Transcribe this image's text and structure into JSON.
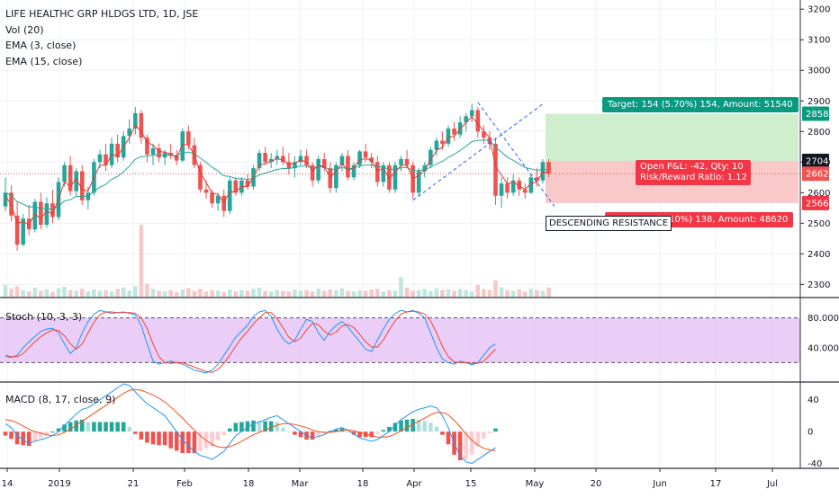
{
  "colors": {
    "up": "#26a69a",
    "down": "#ef5350",
    "ema_fast": "#e53935",
    "ema_slow": "#26a69a",
    "stoch_k": "#2196f3",
    "stoch_d": "#f44336",
    "stoch_bg": "#e6c5f7",
    "macd_line": "#2196f3",
    "signal_line": "#f4511e",
    "target_fill": "#cfeecd",
    "stop_fill": "#f9c9c9",
    "target_label": "#089981",
    "stop_label": "#f23645",
    "pattern_line": "#2962ff"
  },
  "header": {
    "title": "LIFE HEALTHC GRP HLDGS LTD, 1D, JSE",
    "indicators": [
      "Vol (20)",
      "EMA (3, close)",
      "EMA (15, close)"
    ]
  },
  "position": {
    "target_label": "Target: 154 (5.70%) 154, Amount: 51540",
    "stop_label": "Stop: 138 (5.10%) 138, Amount: 48620",
    "pl_label": "Open P&L: -42, Qty: 10",
    "rr_label": "Risk/Reward Ratio: 1.12",
    "target_price": 2858,
    "entry_price": 2704,
    "stop_price": 2566,
    "current_price": 2662
  },
  "pattern": {
    "label": "DESCENDING RESISTANCE"
  },
  "price_axis": {
    "ticks": [
      "3200",
      "3100",
      "3000",
      "2900",
      "2800",
      "2700",
      "2600",
      "2500",
      "2400",
      "2300"
    ],
    "badges": [
      "2858",
      "2704",
      "2662",
      "2566"
    ]
  },
  "stoch": {
    "label": "Stoch (10, 3, 3)",
    "ticks": [
      "80.0000",
      "40.0000"
    ],
    "upper_band": 80,
    "lower_band": 20
  },
  "macd": {
    "label": "MACD (8, 17, close, 9)",
    "ticks": [
      "40",
      "0",
      "-40"
    ]
  },
  "time_axis": {
    "labels": [
      "14",
      "2019",
      "21",
      "Feb",
      "18",
      "Mar",
      "18",
      "Apr",
      "15",
      "May",
      "20",
      "Jun",
      "17",
      "Jul"
    ]
  },
  "chart_data": {
    "type": "candlestick",
    "price_range": [
      2260,
      3230
    ],
    "stoch_range": [
      0,
      100
    ],
    "macd_range": [
      -45,
      60
    ],
    "candles": [
      {
        "o": 2555,
        "h": 2650,
        "l": 2540,
        "c": 2600
      },
      {
        "o": 2600,
        "h": 2625,
        "l": 2505,
        "c": 2525
      },
      {
        "o": 2525,
        "h": 2570,
        "l": 2410,
        "c": 2430
      },
      {
        "o": 2430,
        "h": 2530,
        "l": 2425,
        "c": 2515
      },
      {
        "o": 2515,
        "h": 2560,
        "l": 2460,
        "c": 2480
      },
      {
        "o": 2480,
        "h": 2580,
        "l": 2470,
        "c": 2570
      },
      {
        "o": 2570,
        "h": 2600,
        "l": 2480,
        "c": 2495
      },
      {
        "o": 2495,
        "h": 2585,
        "l": 2485,
        "c": 2565
      },
      {
        "o": 2565,
        "h": 2610,
        "l": 2500,
        "c": 2520
      },
      {
        "o": 2520,
        "h": 2650,
        "l": 2510,
        "c": 2635
      },
      {
        "o": 2635,
        "h": 2700,
        "l": 2620,
        "c": 2690
      },
      {
        "o": 2690,
        "h": 2720,
        "l": 2590,
        "c": 2605
      },
      {
        "o": 2605,
        "h": 2680,
        "l": 2590,
        "c": 2670
      },
      {
        "o": 2670,
        "h": 2690,
        "l": 2560,
        "c": 2575
      },
      {
        "o": 2575,
        "h": 2620,
        "l": 2545,
        "c": 2600
      },
      {
        "o": 2600,
        "h": 2710,
        "l": 2590,
        "c": 2700
      },
      {
        "o": 2700,
        "h": 2740,
        "l": 2680,
        "c": 2725
      },
      {
        "o": 2725,
        "h": 2760,
        "l": 2670,
        "c": 2690
      },
      {
        "o": 2690,
        "h": 2780,
        "l": 2680,
        "c": 2760
      },
      {
        "o": 2760,
        "h": 2790,
        "l": 2700,
        "c": 2715
      },
      {
        "o": 2715,
        "h": 2800,
        "l": 2705,
        "c": 2785
      },
      {
        "o": 2785,
        "h": 2840,
        "l": 2760,
        "c": 2810
      },
      {
        "o": 2810,
        "h": 2880,
        "l": 2790,
        "c": 2860
      },
      {
        "o": 2860,
        "h": 2870,
        "l": 2760,
        "c": 2780
      },
      {
        "o": 2780,
        "h": 2790,
        "l": 2700,
        "c": 2725
      },
      {
        "o": 2725,
        "h": 2760,
        "l": 2690,
        "c": 2745
      },
      {
        "o": 2745,
        "h": 2760,
        "l": 2700,
        "c": 2715
      },
      {
        "o": 2715,
        "h": 2740,
        "l": 2690,
        "c": 2730
      },
      {
        "o": 2730,
        "h": 2760,
        "l": 2710,
        "c": 2720
      },
      {
        "o": 2720,
        "h": 2740,
        "l": 2690,
        "c": 2705
      },
      {
        "o": 2705,
        "h": 2810,
        "l": 2700,
        "c": 2800
      },
      {
        "o": 2800,
        "h": 2820,
        "l": 2740,
        "c": 2755
      },
      {
        "o": 2755,
        "h": 2780,
        "l": 2680,
        "c": 2690
      },
      {
        "o": 2690,
        "h": 2700,
        "l": 2600,
        "c": 2610
      },
      {
        "o": 2610,
        "h": 2640,
        "l": 2580,
        "c": 2600
      },
      {
        "o": 2600,
        "h": 2610,
        "l": 2550,
        "c": 2565
      },
      {
        "o": 2565,
        "h": 2600,
        "l": 2540,
        "c": 2590
      },
      {
        "o": 2590,
        "h": 2610,
        "l": 2520,
        "c": 2540
      },
      {
        "o": 2540,
        "h": 2650,
        "l": 2530,
        "c": 2640
      },
      {
        "o": 2640,
        "h": 2650,
        "l": 2590,
        "c": 2600
      },
      {
        "o": 2600,
        "h": 2650,
        "l": 2590,
        "c": 2640
      },
      {
        "o": 2640,
        "h": 2660,
        "l": 2610,
        "c": 2620
      },
      {
        "o": 2620,
        "h": 2690,
        "l": 2610,
        "c": 2680
      },
      {
        "o": 2680,
        "h": 2740,
        "l": 2670,
        "c": 2730
      },
      {
        "o": 2730,
        "h": 2750,
        "l": 2690,
        "c": 2700
      },
      {
        "o": 2700,
        "h": 2730,
        "l": 2680,
        "c": 2710
      },
      {
        "o": 2710,
        "h": 2740,
        "l": 2690,
        "c": 2720
      },
      {
        "o": 2720,
        "h": 2750,
        "l": 2690,
        "c": 2700
      },
      {
        "o": 2700,
        "h": 2730,
        "l": 2660,
        "c": 2680
      },
      {
        "o": 2680,
        "h": 2720,
        "l": 2650,
        "c": 2700
      },
      {
        "o": 2700,
        "h": 2740,
        "l": 2690,
        "c": 2720
      },
      {
        "o": 2720,
        "h": 2740,
        "l": 2680,
        "c": 2690
      },
      {
        "o": 2690,
        "h": 2700,
        "l": 2620,
        "c": 2640
      },
      {
        "o": 2640,
        "h": 2720,
        "l": 2630,
        "c": 2710
      },
      {
        "o": 2710,
        "h": 2730,
        "l": 2670,
        "c": 2680
      },
      {
        "o": 2680,
        "h": 2700,
        "l": 2600,
        "c": 2615
      },
      {
        "o": 2615,
        "h": 2700,
        "l": 2600,
        "c": 2690
      },
      {
        "o": 2690,
        "h": 2730,
        "l": 2670,
        "c": 2720
      },
      {
        "o": 2720,
        "h": 2740,
        "l": 2640,
        "c": 2650
      },
      {
        "o": 2650,
        "h": 2700,
        "l": 2640,
        "c": 2690
      },
      {
        "o": 2690,
        "h": 2740,
        "l": 2680,
        "c": 2735
      },
      {
        "o": 2735,
        "h": 2760,
        "l": 2700,
        "c": 2715
      },
      {
        "o": 2715,
        "h": 2730,
        "l": 2680,
        "c": 2700
      },
      {
        "o": 2700,
        "h": 2720,
        "l": 2620,
        "c": 2635
      },
      {
        "o": 2635,
        "h": 2700,
        "l": 2620,
        "c": 2690
      },
      {
        "o": 2690,
        "h": 2700,
        "l": 2600,
        "c": 2610
      },
      {
        "o": 2610,
        "h": 2700,
        "l": 2600,
        "c": 2690
      },
      {
        "o": 2690,
        "h": 2720,
        "l": 2670,
        "c": 2710
      },
      {
        "o": 2710,
        "h": 2740,
        "l": 2680,
        "c": 2690
      },
      {
        "o": 2690,
        "h": 2700,
        "l": 2580,
        "c": 2600
      },
      {
        "o": 2600,
        "h": 2680,
        "l": 2590,
        "c": 2670
      },
      {
        "o": 2670,
        "h": 2700,
        "l": 2650,
        "c": 2690
      },
      {
        "o": 2690,
        "h": 2750,
        "l": 2680,
        "c": 2740
      },
      {
        "o": 2740,
        "h": 2780,
        "l": 2720,
        "c": 2770
      },
      {
        "o": 2770,
        "h": 2800,
        "l": 2740,
        "c": 2760
      },
      {
        "o": 2760,
        "h": 2820,
        "l": 2750,
        "c": 2810
      },
      {
        "o": 2810,
        "h": 2830,
        "l": 2770,
        "c": 2790
      },
      {
        "o": 2790,
        "h": 2850,
        "l": 2780,
        "c": 2830
      },
      {
        "o": 2830,
        "h": 2860,
        "l": 2800,
        "c": 2850
      },
      {
        "o": 2850,
        "h": 2890,
        "l": 2830,
        "c": 2870
      },
      {
        "o": 2870,
        "h": 2880,
        "l": 2780,
        "c": 2800
      },
      {
        "o": 2800,
        "h": 2820,
        "l": 2760,
        "c": 2780
      },
      {
        "o": 2780,
        "h": 2800,
        "l": 2740,
        "c": 2760
      },
      {
        "o": 2760,
        "h": 2780,
        "l": 2560,
        "c": 2590
      },
      {
        "o": 2590,
        "h": 2650,
        "l": 2550,
        "c": 2630
      },
      {
        "o": 2630,
        "h": 2650,
        "l": 2580,
        "c": 2600
      },
      {
        "o": 2600,
        "h": 2660,
        "l": 2590,
        "c": 2640
      },
      {
        "o": 2640,
        "h": 2650,
        "l": 2590,
        "c": 2610
      },
      {
        "o": 2610,
        "h": 2630,
        "l": 2580,
        "c": 2600
      },
      {
        "o": 2600,
        "h": 2660,
        "l": 2595,
        "c": 2650
      },
      {
        "o": 2650,
        "h": 2680,
        "l": 2620,
        "c": 2640
      },
      {
        "o": 2640,
        "h": 2710,
        "l": 2630,
        "c": 2700
      },
      {
        "o": 2700,
        "h": 2710,
        "l": 2650,
        "c": 2662
      }
    ],
    "ema_fast": [
      2590,
      2560,
      2500,
      2505,
      2495,
      2530,
      2515,
      2540,
      2530,
      2580,
      2635,
      2620,
      2645,
      2610,
      2605,
      2650,
      2690,
      2690,
      2725,
      2720,
      2750,
      2780,
      2820,
      2800,
      2765,
      2755,
      2735,
      2732,
      2726,
      2715,
      2758,
      2756,
      2723,
      2666,
      2633,
      2599,
      2594,
      2567,
      2604,
      2602,
      2621,
      2620,
      2650,
      2690,
      2695,
      2702,
      2711,
      2706,
      2693,
      2696,
      2708,
      2699,
      2670,
      2690,
      2685,
      2650,
      2670,
      2695,
      2673,
      2681,
      2708,
      2711,
      2706,
      2670,
      2680,
      2645,
      2668,
      2689,
      2690,
      2645,
      2657,
      2673,
      2707,
      2738,
      2749,
      2780,
      2785,
      2808,
      2829,
      2849,
      2825,
      2802,
      2781,
      2686,
      2658,
      2629,
      2635,
      2622,
      2611,
      2630,
      2635,
      2668,
      2665
    ],
    "ema_slow": [
      2600,
      2590,
      2570,
      2563,
      2553,
      2555,
      2547,
      2549,
      2545,
      2556,
      2573,
      2577,
      2588,
      2587,
      2589,
      2603,
      2618,
      2627,
      2644,
      2653,
      2669,
      2687,
      2709,
      2718,
      2719,
      2723,
      2722,
      2723,
      2723,
      2721,
      2731,
      2733,
      2727,
      2713,
      2699,
      2683,
      2671,
      2655,
      2653,
      2646,
      2646,
      2643,
      2648,
      2658,
      2664,
      2670,
      2676,
      2679,
      2679,
      2682,
      2687,
      2687,
      2681,
      2685,
      2684,
      2675,
      2677,
      2682,
      2678,
      2680,
      2687,
      2690,
      2691,
      2684,
      2685,
      2675,
      2677,
      2681,
      2682,
      2672,
      2672,
      2675,
      2683,
      2694,
      2702,
      2716,
      2725,
      2738,
      2752,
      2767,
      2771,
      2772,
      2771,
      2748,
      2733,
      2716,
      2706,
      2694,
      2682,
      2678,
      2673,
      2676,
      2675
    ],
    "volume": [
      18,
      12,
      16,
      10,
      8,
      14,
      9,
      11,
      7,
      13,
      15,
      10,
      9,
      12,
      8,
      11,
      9,
      10,
      8,
      12,
      14,
      9,
      16,
      110,
      20,
      12,
      9,
      8,
      10,
      7,
      11,
      13,
      9,
      12,
      8,
      10,
      9,
      7,
      11,
      8,
      10,
      9,
      12,
      14,
      9,
      8,
      10,
      9,
      8,
      11,
      9,
      10,
      8,
      12,
      9,
      11,
      10,
      13,
      9,
      8,
      10,
      9,
      11,
      12,
      8,
      10,
      9,
      30,
      14,
      9,
      10,
      12,
      9,
      13,
      10,
      11,
      9,
      12,
      10,
      8,
      18,
      12,
      10,
      25,
      14,
      10,
      9,
      11,
      8,
      12,
      10,
      9,
      14
    ],
    "stoch_k": [
      28,
      27,
      30,
      40,
      48,
      55,
      62,
      65,
      66,
      60,
      45,
      32,
      40,
      60,
      75,
      85,
      90,
      88,
      86,
      87,
      88,
      86,
      84,
      70,
      45,
      22,
      18,
      20,
      22,
      20,
      18,
      14,
      10,
      8,
      6,
      10,
      18,
      30,
      42,
      54,
      62,
      70,
      82,
      88,
      90,
      82,
      65,
      52,
      45,
      50,
      65,
      78,
      75,
      60,
      50,
      62,
      70,
      75,
      68,
      58,
      48,
      38,
      35,
      50,
      65,
      78,
      86,
      90,
      88,
      90,
      86,
      80,
      60,
      40,
      25,
      20,
      18,
      22,
      20,
      17,
      20,
      30,
      40,
      45
    ],
    "stoch_d": [
      30,
      28,
      28,
      32,
      40,
      48,
      55,
      60,
      64,
      63,
      56,
      45,
      38,
      45,
      60,
      74,
      84,
      88,
      88,
      87,
      87,
      87,
      86,
      80,
      66,
      45,
      28,
      20,
      19,
      20,
      20,
      17,
      14,
      11,
      8,
      7,
      11,
      19,
      30,
      42,
      53,
      62,
      72,
      80,
      87,
      87,
      79,
      67,
      54,
      48,
      53,
      64,
      73,
      71,
      62,
      57,
      61,
      69,
      71,
      67,
      58,
      48,
      41,
      41,
      50,
      64,
      76,
      85,
      88,
      89,
      88,
      85,
      76,
      60,
      42,
      28,
      21,
      20,
      20,
      19,
      19,
      22,
      30,
      38
    ],
    "macd": [
      10,
      5,
      -5,
      -10,
      -15,
      -12,
      -10,
      -8,
      -5,
      0,
      8,
      15,
      22,
      28,
      30,
      35,
      40,
      45,
      50,
      55,
      60,
      58,
      50,
      42,
      35,
      30,
      25,
      20,
      10,
      0,
      -10,
      -18,
      -25,
      -30,
      -32,
      -35,
      -30,
      -25,
      -15,
      -5,
      0,
      5,
      10,
      12,
      15,
      18,
      20,
      15,
      10,
      5,
      0,
      -5,
      -8,
      -6,
      -4,
      0,
      3,
      5,
      2,
      -3,
      -8,
      -10,
      -12,
      -10,
      -5,
      0,
      8,
      15,
      20,
      25,
      28,
      30,
      32,
      30,
      20,
      5,
      -15,
      -30,
      -38,
      -40,
      -35,
      -30,
      -25,
      -20
    ],
    "signal": [
      15,
      14,
      11,
      7,
      3,
      0,
      -2,
      -4,
      -5,
      -4,
      -1,
      3,
      8,
      13,
      18,
      23,
      28,
      33,
      38,
      43,
      48,
      52,
      53,
      52,
      49,
      46,
      42,
      37,
      31,
      24,
      17,
      9,
      2,
      -5,
      -11,
      -16,
      -19,
      -20,
      -19,
      -16,
      -12,
      -8,
      -4,
      -1,
      2,
      5,
      8,
      10,
      10,
      9,
      7,
      5,
      2,
      0,
      -1,
      -1,
      0,
      1,
      2,
      1,
      -1,
      -3,
      -5,
      -7,
      -7,
      -6,
      -3,
      1,
      5,
      9,
      13,
      17,
      21,
      24,
      24,
      21,
      14,
      6,
      -3,
      -11,
      -17,
      -21,
      -23,
      -24
    ]
  }
}
